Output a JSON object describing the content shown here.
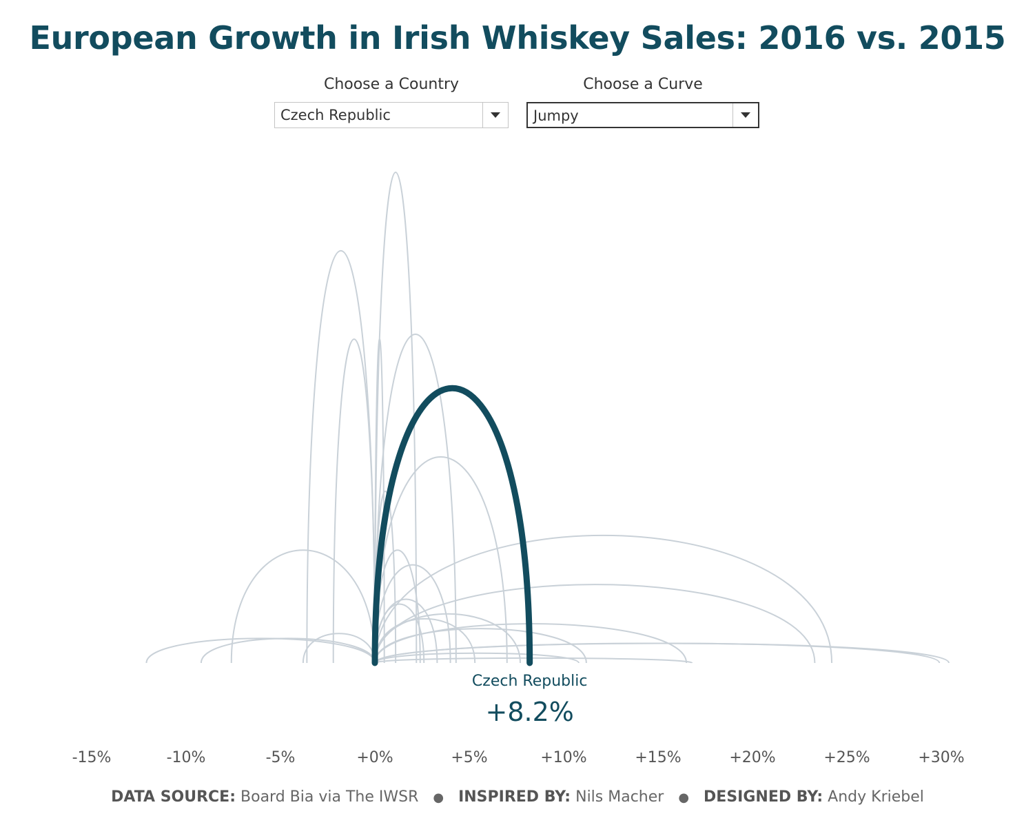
{
  "title": "European Growth in Irish Whiskey Sales: 2016 vs. 2015",
  "filters": {
    "country_label": "Choose a Country",
    "country_value": "Czech Republic",
    "curve_label": "Choose a Curve",
    "curve_value": "Jumpy"
  },
  "colors": {
    "highlight": "#124c5e",
    "others": "#c9d1d8",
    "axis_text": "#555555"
  },
  "chart_data": {
    "type": "arc",
    "x_axis": {
      "min": -15,
      "max": 30,
      "ticks": [
        -15,
        -10,
        -5,
        0,
        5,
        10,
        15,
        20,
        25,
        30
      ],
      "tick_labels": [
        "-15%",
        "-10%",
        "-5%",
        "+0%",
        "+5%",
        "+10%",
        "+15%",
        "+20%",
        "+25%",
        "+30%"
      ]
    },
    "highlight": {
      "country": "Czech Republic",
      "growth": 8.2,
      "label": "+8.2%"
    },
    "series": [
      {
        "growth": -12.1,
        "height": 0.05
      },
      {
        "growth": -9.2,
        "height": 0.05
      },
      {
        "growth": -7.6,
        "height": 0.23
      },
      {
        "growth": -3.8,
        "height": 0.06
      },
      {
        "growth": -3.6,
        "height": 0.84
      },
      {
        "growth": -2.2,
        "height": 0.66
      },
      {
        "growth": 0.5,
        "height": 0.66
      },
      {
        "growth": 1.1,
        "height": 0.35
      },
      {
        "growth": 2.2,
        "height": 1.0
      },
      {
        "growth": 2.4,
        "height": 0.23
      },
      {
        "growth": 2.6,
        "height": 0.12
      },
      {
        "growth": 3.3,
        "height": 0.13
      },
      {
        "growth": 4.0,
        "height": 0.2
      },
      {
        "growth": 4.3,
        "height": 0.67
      },
      {
        "growth": 5.3,
        "height": 0.09
      },
      {
        "growth": 7.0,
        "height": 0.42
      },
      {
        "growth": 7.7,
        "height": 0.1
      },
      {
        "growth": 8.2,
        "height": 0.56,
        "highlight": true
      },
      {
        "growth": 10.8,
        "height": 0.02
      },
      {
        "growth": 11.2,
        "height": 0.07
      },
      {
        "growth": 16.5,
        "height": 0.08
      },
      {
        "growth": 16.8,
        "height": 0.01
      },
      {
        "growth": 23.3,
        "height": 0.16
      },
      {
        "growth": 24.2,
        "height": 0.26
      },
      {
        "growth": 29.9,
        "height": 0.04
      },
      {
        "growth": 30.4,
        "height": 0.04
      }
    ]
  },
  "footer": {
    "source_label": "DATA SOURCE:",
    "source_value": "Board Bia via The IWSR",
    "inspired_label": "INSPIRED BY:",
    "inspired_value": "Nils Macher",
    "designed_label": "DESIGNED BY:",
    "designed_value": "Andy Kriebel"
  }
}
